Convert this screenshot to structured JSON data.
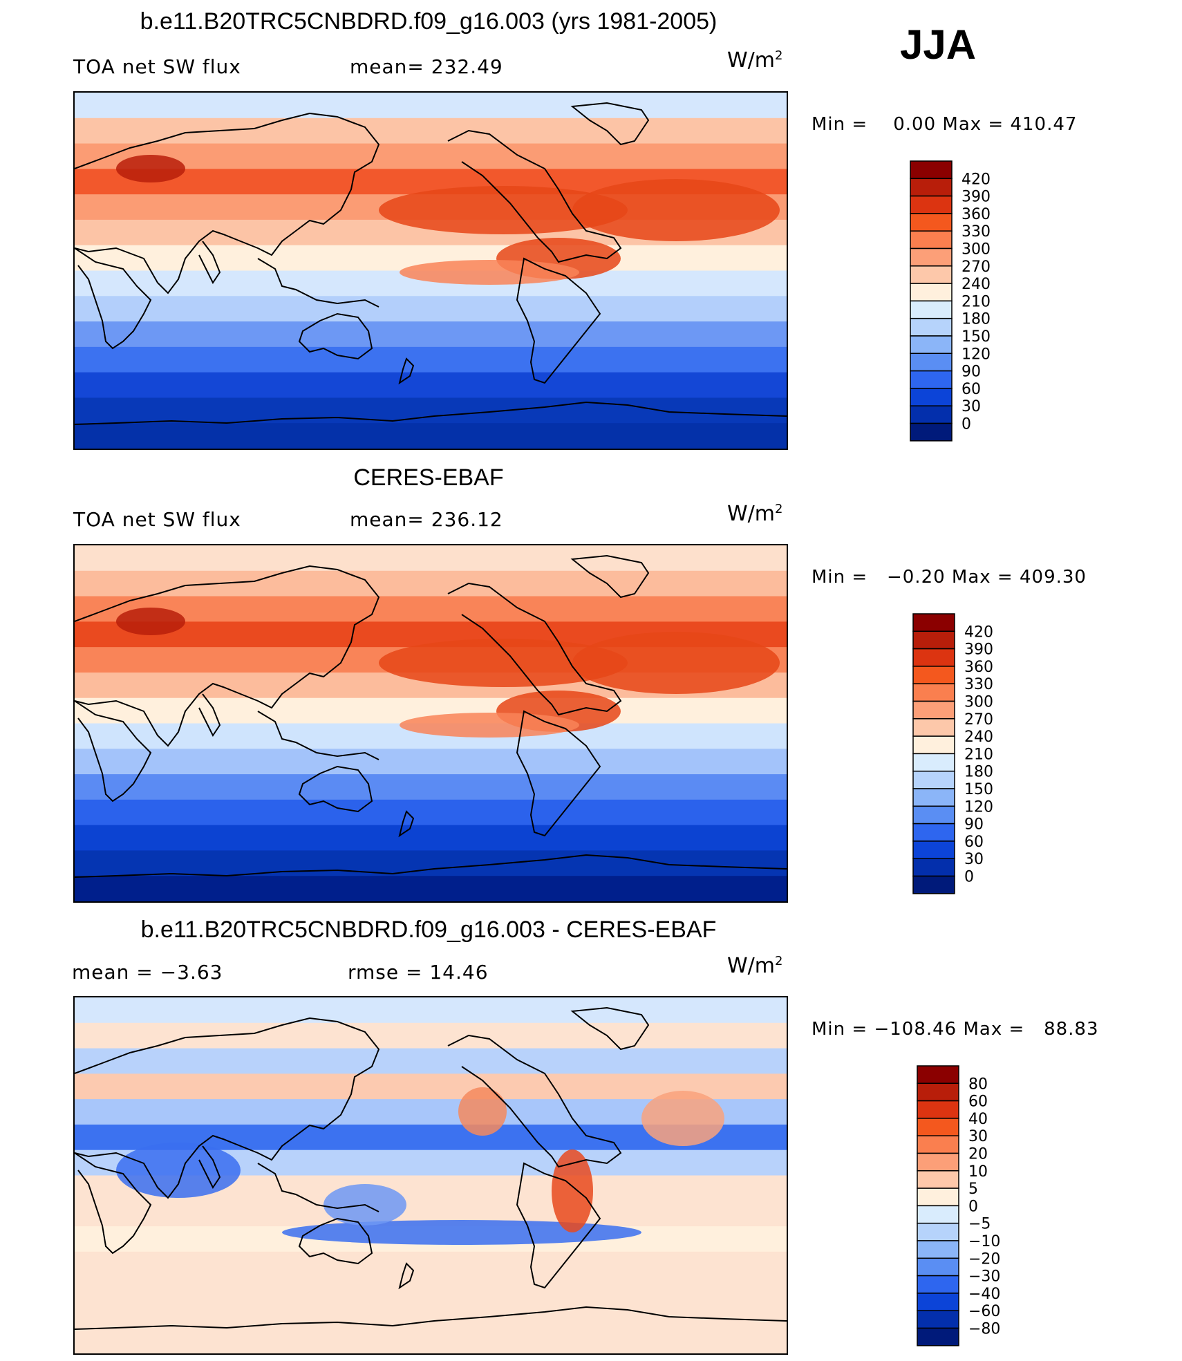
{
  "season": "JJA",
  "units_text": "W/m",
  "units_sup": "2",
  "panels": [
    {
      "title": "b.e11.B20TRC5CNBDRD.f09_g16.003 (yrs 1981-2005)",
      "left_label": "TOA net SW flux",
      "stat_label": "mean= 232.49",
      "minmax": "Min =    0.00 Max = 410.47",
      "colorbar": {
        "levels": [
          "420",
          "390",
          "360",
          "330",
          "300",
          "270",
          "240",
          "210",
          "180",
          "150",
          "120",
          "90",
          "60",
          "30",
          "0"
        ],
        "colors": [
          "#8b0000",
          "#b81e0a",
          "#dc3411",
          "#f4581e",
          "#fa7f4f",
          "#fc9f78",
          "#fdc8aa",
          "#fff0dd",
          "#d9ecfd",
          "#b6d3fb",
          "#8bb5f8",
          "#5a8ef3",
          "#2e66ef",
          "#0c44d8",
          "#032fac",
          "#001a7a"
        ]
      },
      "bands": [
        "#d5e7fd",
        "#fcc4a6",
        "#fb9c74",
        "#f2582c",
        "#fb9c74",
        "#fcc4a6",
        "#fff0dd",
        "#d5e7fd",
        "#b3cffb",
        "#6d98f4",
        "#3c72f0",
        "#1447d6",
        "#0839b8",
        "#0431a9"
      ]
    },
    {
      "title": "CERES-EBAF",
      "left_label": "TOA net SW flux",
      "stat_label": "mean= 236.12",
      "minmax": "Min =   −0.20 Max = 409.30",
      "colorbar": {
        "levels": [
          "420",
          "390",
          "360",
          "330",
          "300",
          "270",
          "240",
          "210",
          "180",
          "150",
          "120",
          "90",
          "60",
          "30",
          "0"
        ],
        "colors": [
          "#8b0000",
          "#b81e0a",
          "#dc3411",
          "#f4581e",
          "#fa7f4f",
          "#fc9f78",
          "#fdc8aa",
          "#fff0dd",
          "#d9ecfd",
          "#b6d3fb",
          "#8bb5f8",
          "#5a8ef3",
          "#2e66ef",
          "#0c44d8",
          "#032fac",
          "#001a7a"
        ]
      },
      "bands": [
        "#fde0cc",
        "#fcbc9c",
        "#f98458",
        "#ea4a1f",
        "#f98458",
        "#fcbc9c",
        "#fff0dd",
        "#cfe4fd",
        "#a3c3fa",
        "#5b8bf3",
        "#2b62ec",
        "#0c43d2",
        "#0535b2",
        "#001f8c"
      ]
    },
    {
      "title": "b.e11.B20TRC5CNBDRD.f09_g16.003 - CERES-EBAF",
      "left_label": "mean =   −3.63",
      "stat_label": "rmse =   14.46",
      "minmax": "Min = −108.46 Max =   88.83",
      "colorbar": {
        "levels": [
          "80",
          "60",
          "40",
          "30",
          "20",
          "10",
          "5",
          "0",
          "−5",
          "−10",
          "−20",
          "−30",
          "−40",
          "−60",
          "−80"
        ],
        "colors": [
          "#8b0000",
          "#b81e0a",
          "#dc3411",
          "#f4581e",
          "#fa7f4f",
          "#fc9f78",
          "#fdc8aa",
          "#fff0dd",
          "#d9ecfd",
          "#b6d3fb",
          "#8bb5f8",
          "#5a8ef3",
          "#2e66ef",
          "#0c44d8",
          "#032fac",
          "#001a7a"
        ]
      },
      "bands": [
        "#d5e7fd",
        "#fde3d1",
        "#b8d2fb",
        "#fccab0",
        "#a8c6fa",
        "#3c72f0",
        "#b8d2fb",
        "#fde3d1",
        "#fde3d1",
        "#fff0dd",
        "#fde3d1",
        "#fde3d1",
        "#fde3d1",
        "#fde3d1"
      ]
    }
  ]
}
